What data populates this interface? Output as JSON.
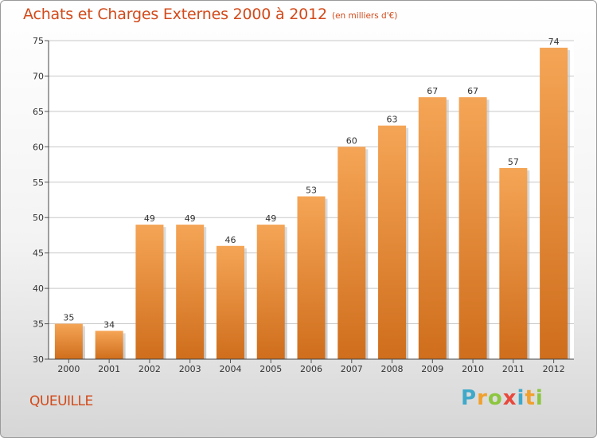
{
  "header": {
    "title": "Achats et Charges Externes 2000 à 2012",
    "unit": "(en milliers d'€)"
  },
  "commune": "QUEUILLE",
  "logo": {
    "text": "Proxiti",
    "letters": [
      "P",
      "r",
      "o",
      "x",
      "i",
      "t",
      "i"
    ],
    "letter_colors": [
      "#3fa9c9",
      "#f0a02c",
      "#8cc63f",
      "#e8483b",
      "#3fa9c9",
      "#f0a02c",
      "#8cc63f"
    ]
  },
  "colors": {
    "bar_top": "#f5a556",
    "bar_bottom": "#cf6e1c",
    "title": "#d24a1a",
    "grid": "#c8c8c8"
  },
  "chart_data": {
    "type": "bar",
    "title": "Achats et Charges Externes 2000 à 2012",
    "subtitle": "(en milliers d'€)",
    "categories": [
      "2000",
      "2001",
      "2002",
      "2003",
      "2004",
      "2005",
      "2006",
      "2007",
      "2008",
      "2009",
      "2010",
      "2011",
      "2012"
    ],
    "values": [
      35,
      34,
      49,
      49,
      46,
      49,
      53,
      60,
      63,
      67,
      67,
      57,
      74
    ],
    "ylim": [
      30,
      75
    ],
    "yticks": [
      30,
      35,
      40,
      45,
      50,
      55,
      60,
      65,
      70,
      75
    ],
    "grid": true,
    "data_labels": true
  }
}
